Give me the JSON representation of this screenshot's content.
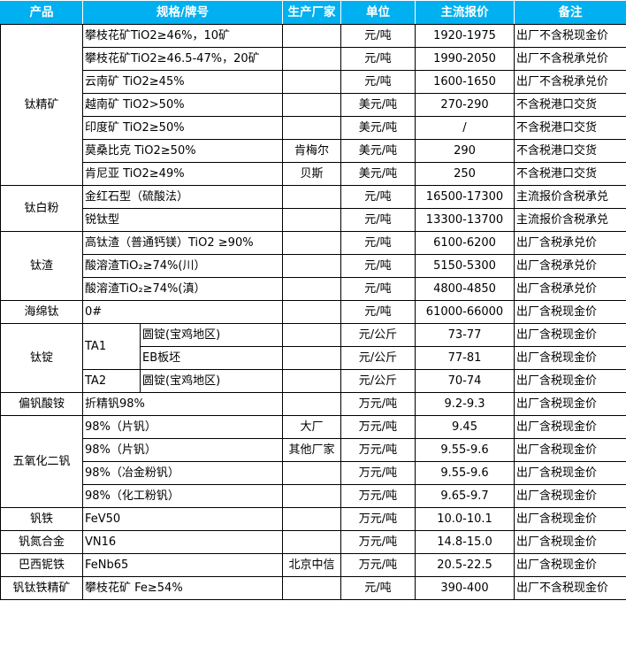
{
  "header": {
    "product": "产品",
    "spec": "规格/牌号",
    "maker": "生产厂家",
    "unit": "单位",
    "price": "主流报价",
    "note": "备注"
  },
  "header_color": "#00B0F0",
  "groups": [
    {
      "product": "钛精矿",
      "rows": [
        {
          "spec": "攀枝花矿TiO2≥46%，10矿",
          "maker": "",
          "unit": "元/吨",
          "price": "1920-1975",
          "note": "出厂不含税现金价"
        },
        {
          "spec": "攀枝花矿TiO2≥46.5-47%，20矿",
          "maker": "",
          "unit": "元/吨",
          "price": "1990-2050",
          "note": "出厂不含税承兑价"
        },
        {
          "spec": "云南矿 TiO2≥45%",
          "maker": "",
          "unit": "元/吨",
          "price": "1600-1650",
          "note": "出厂不含税承兑价"
        },
        {
          "spec": "越南矿 TiO2>50%",
          "maker": "",
          "unit": "美元/吨",
          "price": "270-290",
          "note": "不含税港口交货"
        },
        {
          "spec": "印度矿 TiO2≥50%",
          "maker": "",
          "unit": "美元/吨",
          "price": "/",
          "note": "不含税港口交货"
        },
        {
          "spec": "莫桑比克 TiO2≥50%",
          "maker": "肯梅尔",
          "unit": "美元/吨",
          "price": "290",
          "note": "不含税港口交货"
        },
        {
          "spec": "肯尼亚 TiO2≥49%",
          "maker": "贝斯",
          "unit": "美元/吨",
          "price": "250",
          "note": "不含税港口交货"
        }
      ]
    },
    {
      "product": "钛白粉",
      "rows": [
        {
          "spec": "金红石型（硫酸法）",
          "maker": "",
          "unit": "元/吨",
          "price": "16500-17300",
          "note": "主流报价含税承兑"
        },
        {
          "spec": "锐钛型",
          "maker": "",
          "unit": "元/吨",
          "price": "13300-13700",
          "note": "主流报价含税承兑"
        }
      ]
    },
    {
      "product": "钛渣",
      "rows": [
        {
          "spec": "高钛渣（普通钙镁）TiO2 ≥90%",
          "maker": "",
          "unit": "元/吨",
          "price": "6100-6200",
          "note": "出厂含税承兑价"
        },
        {
          "spec": "酸溶渣TiO₂≥74%(川）",
          "maker": "",
          "unit": "元/吨",
          "price": "5150-5300",
          "note": "出厂含税承兑价"
        },
        {
          "spec": "酸溶渣TiO₂≥74%(滇）",
          "maker": "",
          "unit": "元/吨",
          "price": "4800-4850",
          "note": "出厂含税承兑价"
        }
      ]
    },
    {
      "product": "海绵钛",
      "rows": [
        {
          "spec": "0#",
          "maker": "",
          "unit": "元/吨",
          "price": "61000-66000",
          "note": "出厂含税现金价"
        }
      ]
    },
    {
      "product": "钛锭",
      "rows": [
        {
          "grade": "TA1",
          "grade_span": 2,
          "form": "圆锭(宝鸡地区)",
          "maker": "",
          "unit": "元/公斤",
          "price": "73-77",
          "note": "出厂含税现金价"
        },
        {
          "form": "EB板坯",
          "maker": "",
          "unit": "元/公斤",
          "price": "77-81",
          "note": "出厂含税现金价"
        },
        {
          "grade": "TA2",
          "grade_span": 1,
          "form": "圆锭(宝鸡地区)",
          "maker": "",
          "unit": "元/公斤",
          "price": "70-74",
          "note": "出厂含税现金价"
        }
      ]
    },
    {
      "product": "偏钒酸铵",
      "rows": [
        {
          "spec": "折精钒98%",
          "maker": "",
          "unit": "万元/吨",
          "price": "9.2-9.3",
          "note": "出厂含税现金价"
        }
      ]
    },
    {
      "product": "五氧化二钒",
      "rows": [
        {
          "spec": "98%（片钒）",
          "maker": "大厂",
          "unit": "万元/吨",
          "price": "9.45",
          "note": "出厂含税现金价"
        },
        {
          "spec": "98%（片钒）",
          "maker": "其他厂家",
          "unit": "万元/吨",
          "price": "9.55-9.6",
          "note": "出厂含税现金价"
        },
        {
          "spec": "98%（冶金粉钒）",
          "maker": "",
          "unit": "万元/吨",
          "price": "9.55-9.6",
          "note": "出厂含税现金价"
        },
        {
          "spec": "98%（化工粉钒）",
          "maker": "",
          "unit": "万元/吨",
          "price": "9.65-9.7",
          "note": "出厂含税现金价"
        }
      ]
    },
    {
      "product": "钒铁",
      "rows": [
        {
          "spec": "FeV50",
          "maker": "",
          "unit": "万元/吨",
          "price": "10.0-10.1",
          "note": "出厂含税现金价"
        }
      ]
    },
    {
      "product": "钒氮合金",
      "rows": [
        {
          "spec": "VN16",
          "maker": "",
          "unit": "万元/吨",
          "price": "14.8-15.0",
          "note": "出厂含税现金价"
        }
      ]
    },
    {
      "product": "巴西铌铁",
      "rows": [
        {
          "spec": "FeNb65",
          "maker": "北京中信",
          "unit": "万元/吨",
          "price": "20.5-22.5",
          "note": "出厂含税现金价"
        }
      ]
    },
    {
      "product": "钒钛铁精矿",
      "rows": [
        {
          "spec": "攀枝花矿 Fe≥54%",
          "maker": "",
          "unit": "元/吨",
          "price": "390-400",
          "note": "出厂不含税现金价"
        }
      ]
    }
  ]
}
